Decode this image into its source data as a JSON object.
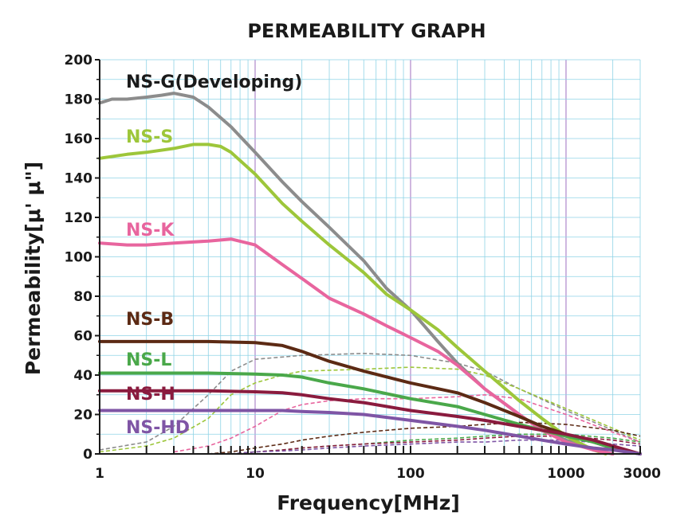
{
  "chart_data": {
    "type": "line",
    "title": "PERMEABILITY GRAPH",
    "xlabel": "Frequency[MHz]",
    "ylabel": "Permeability[μ' μ\"]",
    "x_scale": "log",
    "xlim": [
      1,
      3000
    ],
    "ylim": [
      0,
      200
    ],
    "x_ticks": [
      1,
      10,
      100,
      1000,
      3000
    ],
    "x_tick_labels": [
      "1",
      "10",
      "100",
      "1000",
      "3000"
    ],
    "y_ticks": [
      0,
      20,
      40,
      60,
      80,
      100,
      120,
      140,
      160,
      180,
      200
    ],
    "y_tick_labels": [
      "0",
      "20",
      "40",
      "60",
      "80",
      "100",
      "120",
      "140",
      "160",
      "180",
      "200"
    ],
    "grid": true,
    "series": [
      {
        "name": "NS-G(Developing)",
        "color": "#8c8c8c",
        "mu_prime": [
          [
            1,
            178
          ],
          [
            1.2,
            180
          ],
          [
            1.5,
            180
          ],
          [
            2,
            181
          ],
          [
            2.5,
            182
          ],
          [
            3,
            183
          ],
          [
            4,
            181
          ],
          [
            5,
            176
          ],
          [
            7,
            166
          ],
          [
            10,
            153
          ],
          [
            15,
            138
          ],
          [
            20,
            128
          ],
          [
            30,
            115
          ],
          [
            50,
            98
          ],
          [
            70,
            84
          ],
          [
            100,
            73
          ],
          [
            150,
            57
          ],
          [
            200,
            46
          ],
          [
            300,
            33
          ],
          [
            500,
            20
          ],
          [
            700,
            12
          ],
          [
            1000,
            7
          ],
          [
            1500,
            2
          ],
          [
            2000,
            0
          ]
        ],
        "mu_double_prime": [
          [
            1,
            2
          ],
          [
            2,
            6
          ],
          [
            3,
            14
          ],
          [
            5,
            30
          ],
          [
            7,
            42
          ],
          [
            10,
            48
          ],
          [
            20,
            50
          ],
          [
            50,
            51
          ],
          [
            100,
            50
          ],
          [
            200,
            46
          ],
          [
            300,
            42
          ],
          [
            500,
            33
          ],
          [
            1000,
            22
          ],
          [
            2000,
            12
          ],
          [
            3000,
            6
          ]
        ]
      },
      {
        "name": "NS-S",
        "color": "#9dc63a",
        "mu_prime": [
          [
            1,
            150
          ],
          [
            1.5,
            152
          ],
          [
            2,
            153
          ],
          [
            3,
            155
          ],
          [
            4,
            157
          ],
          [
            5,
            157
          ],
          [
            6,
            156
          ],
          [
            7,
            153
          ],
          [
            10,
            142
          ],
          [
            15,
            127
          ],
          [
            20,
            118
          ],
          [
            30,
            106
          ],
          [
            50,
            92
          ],
          [
            70,
            81
          ],
          [
            100,
            73
          ],
          [
            150,
            63
          ],
          [
            200,
            54
          ],
          [
            300,
            42
          ],
          [
            500,
            27
          ],
          [
            700,
            18
          ],
          [
            1000,
            9
          ],
          [
            1500,
            2
          ],
          [
            1800,
            0
          ]
        ],
        "mu_double_prime": [
          [
            1,
            1
          ],
          [
            2,
            4
          ],
          [
            3,
            8
          ],
          [
            5,
            18
          ],
          [
            7,
            30
          ],
          [
            10,
            36
          ],
          [
            15,
            40
          ],
          [
            20,
            42
          ],
          [
            50,
            43
          ],
          [
            100,
            44
          ],
          [
            200,
            43
          ],
          [
            300,
            40
          ],
          [
            500,
            33
          ],
          [
            1000,
            23
          ],
          [
            2000,
            13
          ],
          [
            3000,
            7
          ]
        ]
      },
      {
        "name": "NS-K",
        "color": "#e8659e",
        "mu_prime": [
          [
            1,
            107
          ],
          [
            1.5,
            106
          ],
          [
            2,
            106
          ],
          [
            3,
            107
          ],
          [
            5,
            108
          ],
          [
            7,
            109
          ],
          [
            10,
            106
          ],
          [
            15,
            96
          ],
          [
            20,
            89
          ],
          [
            30,
            79
          ],
          [
            50,
            71
          ],
          [
            70,
            65
          ],
          [
            100,
            59
          ],
          [
            150,
            52
          ],
          [
            200,
            45
          ],
          [
            300,
            33
          ],
          [
            500,
            20
          ],
          [
            700,
            12
          ],
          [
            1000,
            6
          ],
          [
            1500,
            2
          ],
          [
            2000,
            0
          ]
        ],
        "mu_double_prime": [
          [
            3,
            1
          ],
          [
            5,
            4
          ],
          [
            7,
            8
          ],
          [
            10,
            14
          ],
          [
            15,
            22
          ],
          [
            20,
            25
          ],
          [
            30,
            27
          ],
          [
            50,
            28
          ],
          [
            100,
            28
          ],
          [
            200,
            29
          ],
          [
            300,
            30
          ],
          [
            500,
            28
          ],
          [
            1000,
            20
          ],
          [
            2000,
            11
          ],
          [
            3000,
            6
          ]
        ]
      },
      {
        "name": "NS-B",
        "color": "#5c2a14",
        "mu_prime": [
          [
            1,
            57
          ],
          [
            2,
            57
          ],
          [
            5,
            57
          ],
          [
            10,
            56.5
          ],
          [
            15,
            55
          ],
          [
            20,
            52
          ],
          [
            30,
            47
          ],
          [
            50,
            42
          ],
          [
            100,
            36
          ],
          [
            200,
            31
          ],
          [
            300,
            26
          ],
          [
            500,
            19
          ],
          [
            700,
            14
          ],
          [
            1000,
            10
          ],
          [
            1500,
            6
          ],
          [
            2000,
            3
          ],
          [
            3000,
            0
          ]
        ],
        "mu_double_prime": [
          [
            5,
            0
          ],
          [
            7,
            1
          ],
          [
            10,
            3
          ],
          [
            15,
            5
          ],
          [
            20,
            7
          ],
          [
            30,
            9
          ],
          [
            50,
            11
          ],
          [
            100,
            13
          ],
          [
            200,
            14
          ],
          [
            300,
            15
          ],
          [
            500,
            16
          ],
          [
            1000,
            15
          ],
          [
            2000,
            12
          ],
          [
            3000,
            9
          ]
        ]
      },
      {
        "name": "NS-L",
        "color": "#4aa84a",
        "mu_prime": [
          [
            1,
            41
          ],
          [
            2,
            41
          ],
          [
            5,
            41
          ],
          [
            10,
            40.5
          ],
          [
            15,
            40
          ],
          [
            20,
            39
          ],
          [
            30,
            36
          ],
          [
            50,
            33
          ],
          [
            100,
            28
          ],
          [
            200,
            24
          ],
          [
            300,
            20
          ],
          [
            500,
            15
          ],
          [
            700,
            12
          ],
          [
            1000,
            9
          ],
          [
            1500,
            6
          ],
          [
            2000,
            3
          ],
          [
            3000,
            0
          ]
        ],
        "mu_double_prime": [
          [
            7,
            0
          ],
          [
            10,
            1
          ],
          [
            15,
            2
          ],
          [
            20,
            3
          ],
          [
            30,
            4
          ],
          [
            50,
            5
          ],
          [
            100,
            7
          ],
          [
            200,
            8
          ],
          [
            300,
            9
          ],
          [
            500,
            10
          ],
          [
            1000,
            10
          ],
          [
            2000,
            8
          ],
          [
            3000,
            6
          ]
        ]
      },
      {
        "name": "NS-H",
        "color": "#8a1b3e",
        "mu_prime": [
          [
            1,
            32
          ],
          [
            2,
            32
          ],
          [
            5,
            32
          ],
          [
            10,
            31.5
          ],
          [
            15,
            31
          ],
          [
            20,
            30
          ],
          [
            30,
            28
          ],
          [
            50,
            26
          ],
          [
            100,
            22
          ],
          [
            200,
            19
          ],
          [
            300,
            17
          ],
          [
            500,
            14
          ],
          [
            700,
            12
          ],
          [
            1000,
            10
          ],
          [
            1500,
            7
          ],
          [
            2000,
            4
          ],
          [
            3000,
            0
          ]
        ],
        "mu_double_prime": [
          [
            7,
            0
          ],
          [
            10,
            1
          ],
          [
            15,
            2
          ],
          [
            20,
            3
          ],
          [
            30,
            4
          ],
          [
            50,
            5
          ],
          [
            100,
            6
          ],
          [
            200,
            7
          ],
          [
            300,
            8
          ],
          [
            500,
            9
          ],
          [
            1000,
            9
          ],
          [
            2000,
            7
          ],
          [
            3000,
            5
          ]
        ]
      },
      {
        "name": "NS-HD",
        "color": "#7f55a5",
        "mu_prime": [
          [
            1,
            22
          ],
          [
            2,
            22
          ],
          [
            5,
            22
          ],
          [
            10,
            22
          ],
          [
            15,
            22
          ],
          [
            20,
            21.5
          ],
          [
            30,
            21
          ],
          [
            50,
            20
          ],
          [
            100,
            17
          ],
          [
            200,
            14
          ],
          [
            300,
            12
          ],
          [
            500,
            9
          ],
          [
            700,
            7
          ],
          [
            1000,
            5
          ],
          [
            1500,
            3
          ],
          [
            2000,
            2
          ],
          [
            3000,
            0
          ]
        ],
        "mu_double_prime": [
          [
            7,
            0
          ],
          [
            10,
            1
          ],
          [
            15,
            1.5
          ],
          [
            20,
            2
          ],
          [
            30,
            3
          ],
          [
            50,
            4
          ],
          [
            100,
            5
          ],
          [
            200,
            6
          ],
          [
            300,
            6
          ],
          [
            500,
            7
          ],
          [
            1000,
            7
          ],
          [
            2000,
            5
          ],
          [
            3000,
            4
          ]
        ]
      }
    ]
  }
}
